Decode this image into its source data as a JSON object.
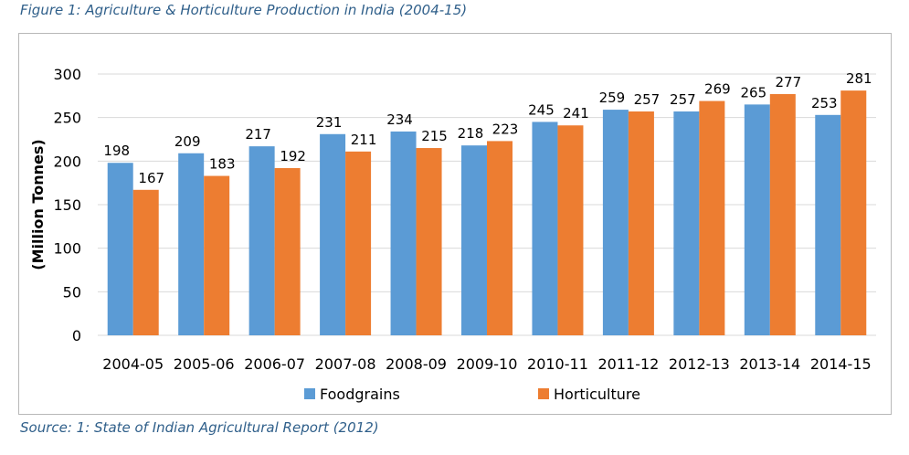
{
  "figure_caption": "Figure 1: Agriculture & Horticulture Production  in India (2004-15)",
  "source_caption": "Source: 1: State of Indian Agricultural Report (2012)",
  "colors": {
    "foodgrains": "#5b9bd5",
    "horticulture": "#ed7d31",
    "grid": "#d9d9d9"
  },
  "chart_data": {
    "type": "bar",
    "title": "",
    "xlabel": "",
    "ylabel": "(Million Tonnes)",
    "ylim": [
      0,
      300
    ],
    "yticks": [
      "0",
      "50",
      "100",
      "150",
      "200",
      "250",
      "300"
    ],
    "grid": true,
    "legend": "bottom",
    "categories": [
      "2004-05",
      "2005-06",
      "2006-07",
      "2007-08",
      "2008-09",
      "2009-10",
      "2010-11",
      "2011-12",
      "2012-13",
      "2013-14",
      "2014-15"
    ],
    "series": [
      {
        "name": "Foodgrains",
        "values": [
          198,
          209,
          217,
          231,
          234,
          218,
          245,
          259,
          257,
          265,
          253
        ]
      },
      {
        "name": "Horticulture",
        "values": [
          167,
          183,
          192,
          211,
          215,
          223,
          241,
          257,
          269,
          277,
          281
        ]
      }
    ]
  }
}
